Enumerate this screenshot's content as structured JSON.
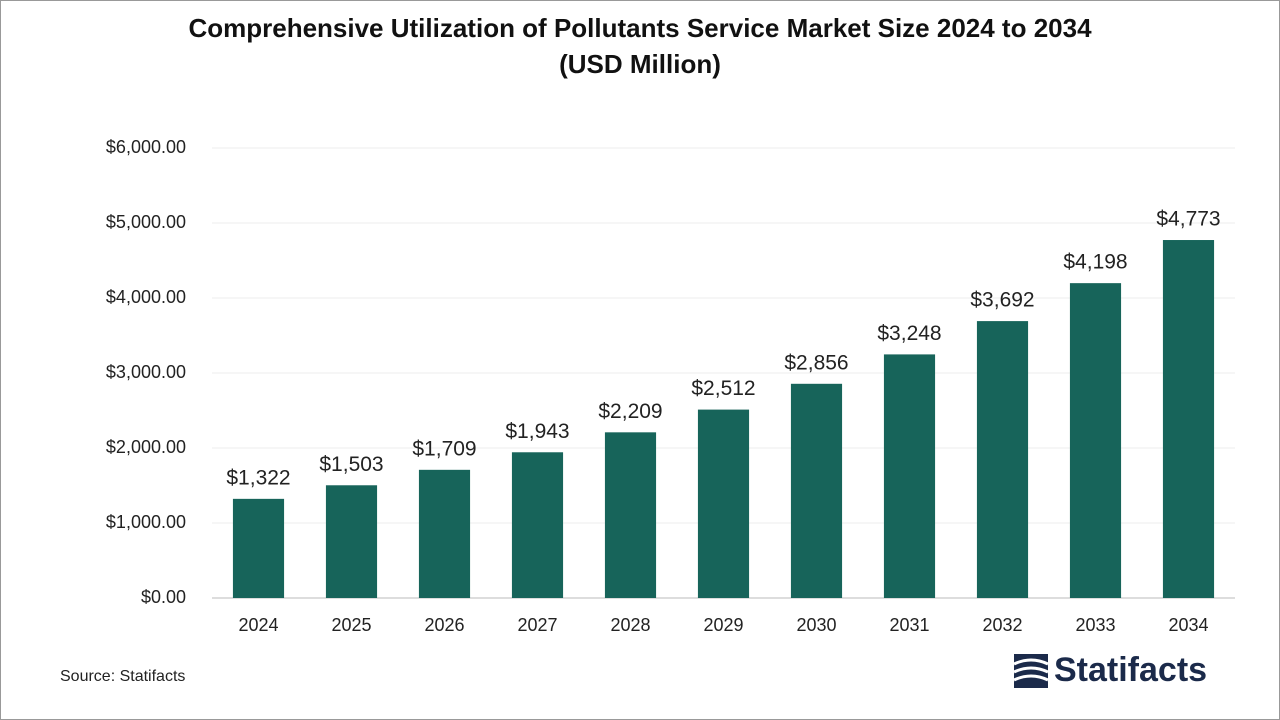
{
  "chart_data": {
    "type": "bar",
    "title": "Comprehensive Utilization of Pollutants Service Market Size 2024 to 2034",
    "subtitle": "(USD Million)",
    "categories": [
      "2024",
      "2025",
      "2026",
      "2027",
      "2028",
      "2029",
      "2030",
      "2031",
      "2032",
      "2033",
      "2034"
    ],
    "values": [
      1322,
      1503,
      1709,
      1943,
      2209,
      2512,
      2856,
      3248,
      3692,
      4198,
      4773
    ],
    "value_labels": [
      "$1,322",
      "$1,503",
      "$1,709",
      "$1,943",
      "$2,209",
      "$2,512",
      "$2,856",
      "$3,248",
      "$3,692",
      "$4,198",
      "$4,773"
    ],
    "color": "#17645a",
    "ylim": [
      0,
      6000
    ],
    "yticks": [
      {
        "value": 0,
        "label": "$0.00"
      },
      {
        "value": 1000,
        "label": "$1,000.00"
      },
      {
        "value": 2000,
        "label": "$2,000.00"
      },
      {
        "value": 3000,
        "label": "$3,000.00"
      },
      {
        "value": 4000,
        "label": "$4,000.00"
      },
      {
        "value": 5000,
        "label": "$5,000.00"
      },
      {
        "value": 6000,
        "label": "$6,000.00"
      }
    ],
    "grid": true,
    "source": "Source: Statifacts",
    "brand": "Statifacts"
  }
}
